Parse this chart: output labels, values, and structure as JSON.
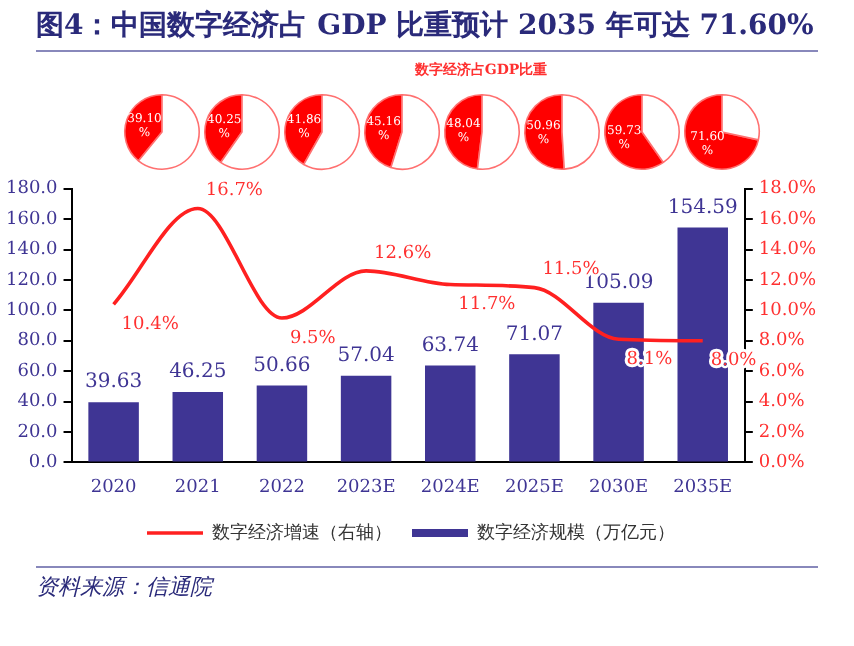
{
  "chart_data": [
    {
      "type": "pie",
      "title": "图4：中国数字经济占 GDP 比重预计 2035 年可达 71.60%",
      "categories": [
        null,
        null
      ],
      "values": [
        39.1,
        60.9
      ],
      "colors": [
        "#ff0000",
        "#ffffff"
      ],
      "value_labels": [
        "39.10%",
        null
      ]
    },
    {
      "type": "pie",
      "categories": [
        null,
        null
      ],
      "values": [
        40.25,
        59.75
      ],
      "colors": [
        "#ff0000",
        "#ffffff"
      ],
      "value_labels": [
        "40.25%",
        null
      ]
    },
    {
      "type": "pie",
      "categories": [
        null,
        null
      ],
      "values": [
        41.86,
        58.14
      ],
      "colors": [
        "#ff0000",
        "#ffffff"
      ],
      "value_labels": [
        "41.86%",
        null
      ]
    },
    {
      "type": "pie",
      "categories": [
        null,
        null
      ],
      "values": [
        45.16,
        54.84
      ],
      "colors": [
        "#ff0000",
        "#ffffff"
      ],
      "value_labels": [
        "45.16%",
        null
      ]
    },
    {
      "type": "pie",
      "subtitle": "数字经济占GDP比重",
      "categories": [
        null,
        null
      ],
      "values": [
        48.04,
        51.96
      ],
      "colors": [
        "#ff0000",
        "#ffffff"
      ],
      "value_labels": [
        "48.04%",
        null
      ]
    },
    {
      "type": "pie",
      "categories": [
        null,
        null
      ],
      "values": [
        50.96,
        49.04
      ],
      "colors": [
        "#ff0000",
        "#ffffff"
      ],
      "value_labels": [
        "50.96%",
        null
      ]
    },
    {
      "type": "pie",
      "categories": [
        null,
        null
      ],
      "values": [
        59.73,
        40.27
      ],
      "colors": [
        "#ff0000",
        "#ffffff"
      ],
      "value_labels": [
        "59.73%",
        null
      ]
    },
    {
      "type": "pie",
      "categories": [
        null,
        null
      ],
      "values": [
        71.6,
        28.4
      ],
      "colors": [
        "#ff0000",
        "#ffffff"
      ],
      "value_labels": [
        "71.60%",
        null
      ]
    },
    {
      "type": "bar",
      "categories": [
        "2020",
        "2021",
        "2022",
        "2023E",
        "2024E",
        "2025E",
        "2030E",
        "2035E"
      ],
      "series": [
        {
          "name": "数字经济规模（万亿元）",
          "type": "bar",
          "color": "#3f3594",
          "values": [
            39.63,
            46.25,
            50.66,
            57.04,
            63.74,
            71.07,
            105.09,
            154.59
          ],
          "value_labels": [
            "39.63",
            "46.25",
            "50.66",
            "57.04",
            "63.74",
            "71.07",
            "105.09",
            "154.59"
          ]
        },
        {
          "name": "数字经济增速（右轴）",
          "type": "line",
          "axis": "y2",
          "color": "#ff2020",
          "values": [
            10.4,
            16.7,
            9.5,
            12.6,
            11.7,
            11.5,
            8.1,
            8.0
          ],
          "value_labels": [
            "10.4%",
            "16.7%",
            "9.5%",
            "12.6%",
            "11.7%",
            "11.5%",
            "8.1%",
            "8.0%"
          ]
        }
      ],
      "ylim": [
        0,
        180
      ],
      "yticks": [
        {
          "value": 0,
          "label": "0.0"
        },
        {
          "value": 20,
          "label": "20.0"
        },
        {
          "value": 40,
          "label": "40.0"
        },
        {
          "value": 60,
          "label": "60.0"
        },
        {
          "value": 80,
          "label": "80.0"
        },
        {
          "value": 100,
          "label": "100.0"
        },
        {
          "value": 120,
          "label": "120.0"
        },
        {
          "value": 140,
          "label": "140.0"
        },
        {
          "value": 160,
          "label": "160.0"
        },
        {
          "value": 180,
          "label": "180.0"
        }
      ],
      "y2lim": [
        0,
        18
      ],
      "y2ticks": [
        {
          "value": 0,
          "label": "0.0%"
        },
        {
          "value": 2,
          "label": "2.0%"
        },
        {
          "value": 4,
          "label": "4.0%"
        },
        {
          "value": 6,
          "label": "6.0%"
        },
        {
          "value": 8,
          "label": "8.0%"
        },
        {
          "value": 10,
          "label": "10.0%"
        },
        {
          "value": 12,
          "label": "12.0%"
        },
        {
          "value": 14,
          "label": "14.0%"
        },
        {
          "value": 16,
          "label": "16.0%"
        },
        {
          "value": 18,
          "label": "18.0%"
        }
      ],
      "grid": false,
      "legend": "bottom",
      "marker": "none",
      "line_style": "solid",
      "annotations": [
        "资料来源：信通院"
      ]
    }
  ]
}
